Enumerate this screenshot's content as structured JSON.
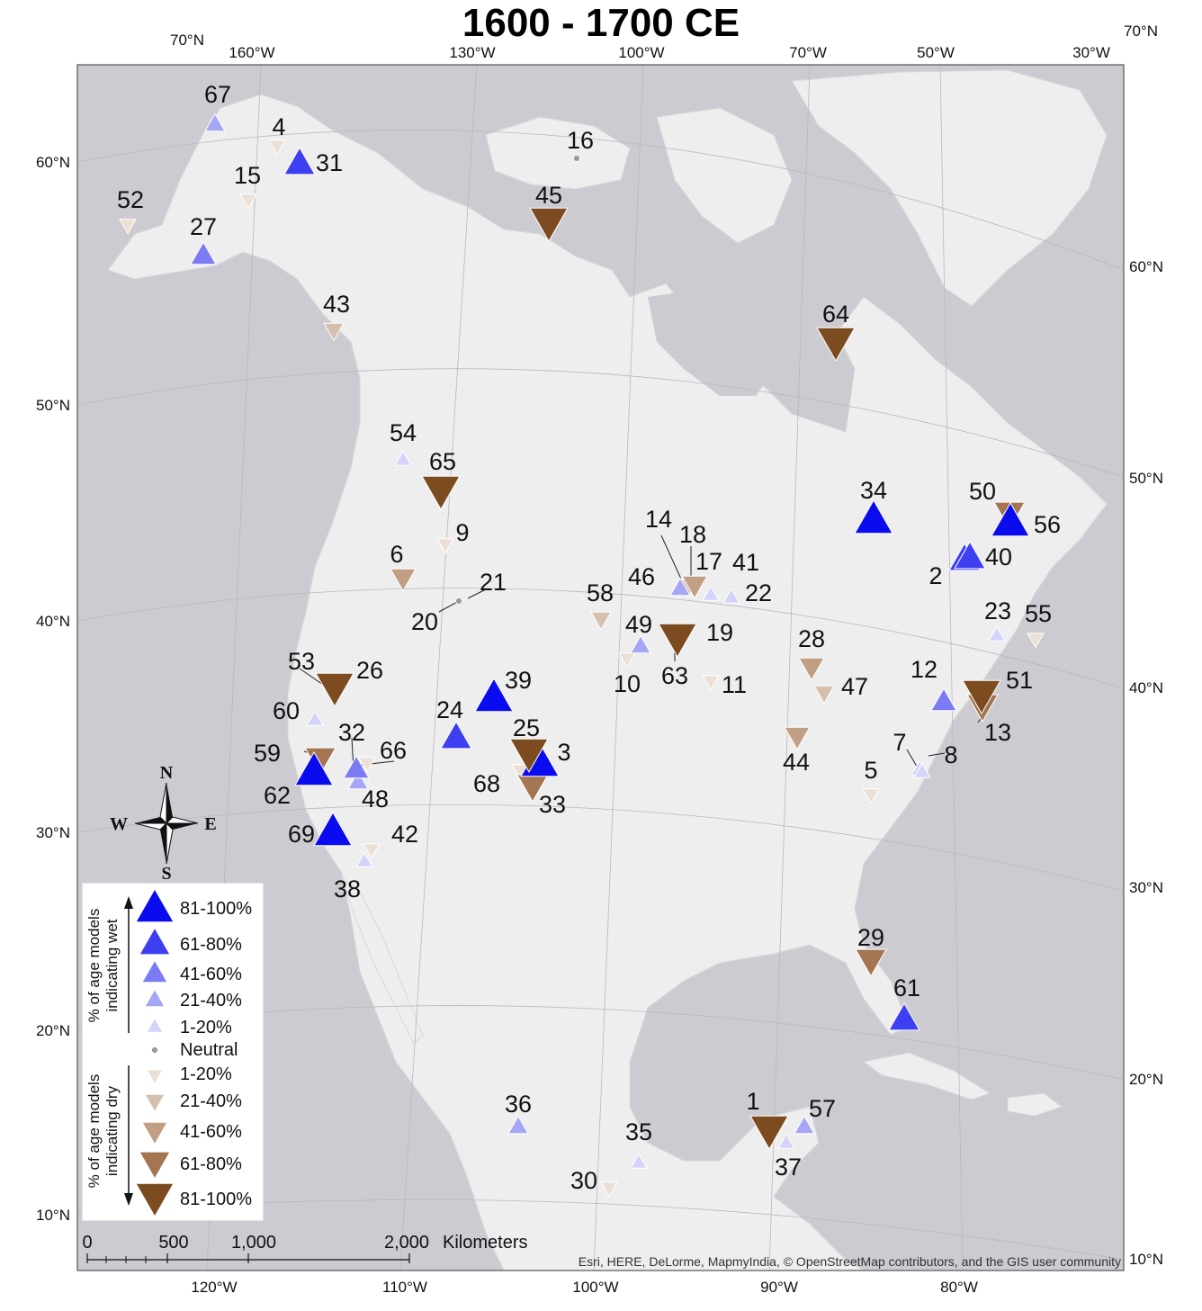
{
  "title": "1600 - 1700 CE",
  "colors": {
    "ocean": "#cbcbd1",
    "land": "#eeeeee",
    "wet": [
      "#d4d4fb",
      "#a6a6f6",
      "#7b7bf3",
      "#3f3ff2",
      "#0b0bf0"
    ],
    "neutral": "#999999",
    "dry": [
      "#ece0d6",
      "#d5bfae",
      "#c09f84",
      "#a37651",
      "#7c4b1f"
    ]
  },
  "graticule_top": {
    "left_70n": "70°N",
    "right_70n": "70°N",
    "lons": [
      "160°W",
      "130°W",
      "100°W",
      "70°W",
      "50°W",
      "30°W"
    ]
  },
  "graticule_bottom": [
    "120°W",
    "110°W",
    "100°W",
    "90°W",
    "80°W"
  ],
  "graticule_left": [
    "60°N",
    "50°N",
    "40°N",
    "30°N",
    "20°N",
    "10°N"
  ],
  "graticule_right": [
    "60°N",
    "50°N",
    "40°N",
    "30°N",
    "20°N",
    "10°N"
  ],
  "legend": {
    "wet_title_1": "% of age models",
    "wet_title_2": "indicating wet",
    "dry_title_1": "% of age models",
    "dry_title_2": "indicating dry",
    "wet_items": [
      "81-100%",
      "61-80%",
      "41-60%",
      "21-40%",
      "1-20%"
    ],
    "neutral": "Neutral",
    "dry_items": [
      "1-20%",
      "21-40%",
      "41-60%",
      "61-80%",
      "81-100%"
    ]
  },
  "compass": {
    "n": "N",
    "s": "S",
    "e": "E",
    "w": "W"
  },
  "scale_bar": {
    "ticks": [
      "0",
      "500",
      "1,000",
      "2,000"
    ],
    "unit": "Kilometers"
  },
  "credit": "Esri, HERE, DeLorme, MapmyIndia, © OpenStreetMap contributors, and the GIS user community",
  "sites": [
    {
      "id": "1",
      "dir": "dry",
      "cls": 5
    },
    {
      "id": "2",
      "dir": "wet",
      "cls": 4
    },
    {
      "id": "3",
      "dir": "wet",
      "cls": 5
    },
    {
      "id": "4",
      "dir": "dry",
      "cls": 1
    },
    {
      "id": "5",
      "dir": "dry",
      "cls": 1
    },
    {
      "id": "6",
      "dir": "dry",
      "cls": 3
    },
    {
      "id": "7",
      "dir": "wet",
      "cls": 1
    },
    {
      "id": "8",
      "dir": "wet",
      "cls": 1
    },
    {
      "id": "9",
      "dir": "dry",
      "cls": 1
    },
    {
      "id": "10",
      "dir": "dry",
      "cls": 1
    },
    {
      "id": "11",
      "dir": "dry",
      "cls": 1
    },
    {
      "id": "12",
      "dir": "wet",
      "cls": 3
    },
    {
      "id": "13",
      "dir": "dry",
      "cls": 4
    },
    {
      "id": "14",
      "dir": "wet",
      "cls": 2
    },
    {
      "id": "15",
      "dir": "dry",
      "cls": 1
    },
    {
      "id": "16",
      "dir": "neutral",
      "cls": 0
    },
    {
      "id": "17",
      "dir": "dry",
      "cls": 3
    },
    {
      "id": "18",
      "dir": "dry",
      "cls": 2
    },
    {
      "id": "19",
      "dir": "dry",
      "cls": 5
    },
    {
      "id": "20",
      "dir": "neutral",
      "cls": 0
    },
    {
      "id": "21",
      "dir": "neutral",
      "cls": 0
    },
    {
      "id": "22",
      "dir": "wet",
      "cls": 1
    },
    {
      "id": "23",
      "dir": "wet",
      "cls": 1
    },
    {
      "id": "24",
      "dir": "wet",
      "cls": 4
    },
    {
      "id": "25",
      "dir": "dry",
      "cls": 5
    },
    {
      "id": "26",
      "dir": "dry",
      "cls": 5
    },
    {
      "id": "27",
      "dir": "wet",
      "cls": 3
    },
    {
      "id": "28",
      "dir": "dry",
      "cls": 3
    },
    {
      "id": "29",
      "dir": "dry",
      "cls": 4
    },
    {
      "id": "30",
      "dir": "dry",
      "cls": 1
    },
    {
      "id": "31",
      "dir": "wet",
      "cls": 4
    },
    {
      "id": "32",
      "dir": "wet",
      "cls": 3
    },
    {
      "id": "33",
      "dir": "dry",
      "cls": 4
    },
    {
      "id": "34",
      "dir": "wet",
      "cls": 5
    },
    {
      "id": "35",
      "dir": "wet",
      "cls": 1
    },
    {
      "id": "36",
      "dir": "wet",
      "cls": 2
    },
    {
      "id": "37",
      "dir": "wet",
      "cls": 1
    },
    {
      "id": "38",
      "dir": "wet",
      "cls": 1
    },
    {
      "id": "39",
      "dir": "wet",
      "cls": 5
    },
    {
      "id": "40",
      "dir": "wet",
      "cls": 4
    },
    {
      "id": "41",
      "dir": "wet",
      "cls": 1
    },
    {
      "id": "42",
      "dir": "dry",
      "cls": 1
    },
    {
      "id": "43",
      "dir": "dry",
      "cls": 2
    },
    {
      "id": "44",
      "dir": "dry",
      "cls": 3
    },
    {
      "id": "45",
      "dir": "dry",
      "cls": 5
    },
    {
      "id": "46",
      "dir": "wet",
      "cls": 2
    },
    {
      "id": "47",
      "dir": "dry",
      "cls": 2
    },
    {
      "id": "48",
      "dir": "wet",
      "cls": 2
    },
    {
      "id": "49",
      "dir": "wet",
      "cls": 2
    },
    {
      "id": "50",
      "dir": "dry",
      "cls": 4
    },
    {
      "id": "51",
      "dir": "dry",
      "cls": 5
    },
    {
      "id": "52",
      "dir": "dry",
      "cls": 1
    },
    {
      "id": "53",
      "dir": "neutral",
      "cls": 0
    },
    {
      "id": "54",
      "dir": "wet",
      "cls": 1
    },
    {
      "id": "55",
      "dir": "dry",
      "cls": 1
    },
    {
      "id": "56",
      "dir": "wet",
      "cls": 5
    },
    {
      "id": "57",
      "dir": "wet",
      "cls": 2
    },
    {
      "id": "58",
      "dir": "dry",
      "cls": 2
    },
    {
      "id": "59",
      "dir": "dry",
      "cls": 4
    },
    {
      "id": "60",
      "dir": "wet",
      "cls": 1
    },
    {
      "id": "61",
      "dir": "wet",
      "cls": 4
    },
    {
      "id": "62",
      "dir": "wet",
      "cls": 5
    },
    {
      "id": "63",
      "dir": "neutral",
      "cls": 0
    },
    {
      "id": "64",
      "dir": "dry",
      "cls": 5
    },
    {
      "id": "65",
      "dir": "dry",
      "cls": 5
    },
    {
      "id": "66",
      "dir": "dry",
      "cls": 1
    },
    {
      "id": "67",
      "dir": "wet",
      "cls": 2
    },
    {
      "id": "68",
      "dir": "dry",
      "cls": 1
    },
    {
      "id": "69",
      "dir": "wet",
      "cls": 5
    }
  ]
}
